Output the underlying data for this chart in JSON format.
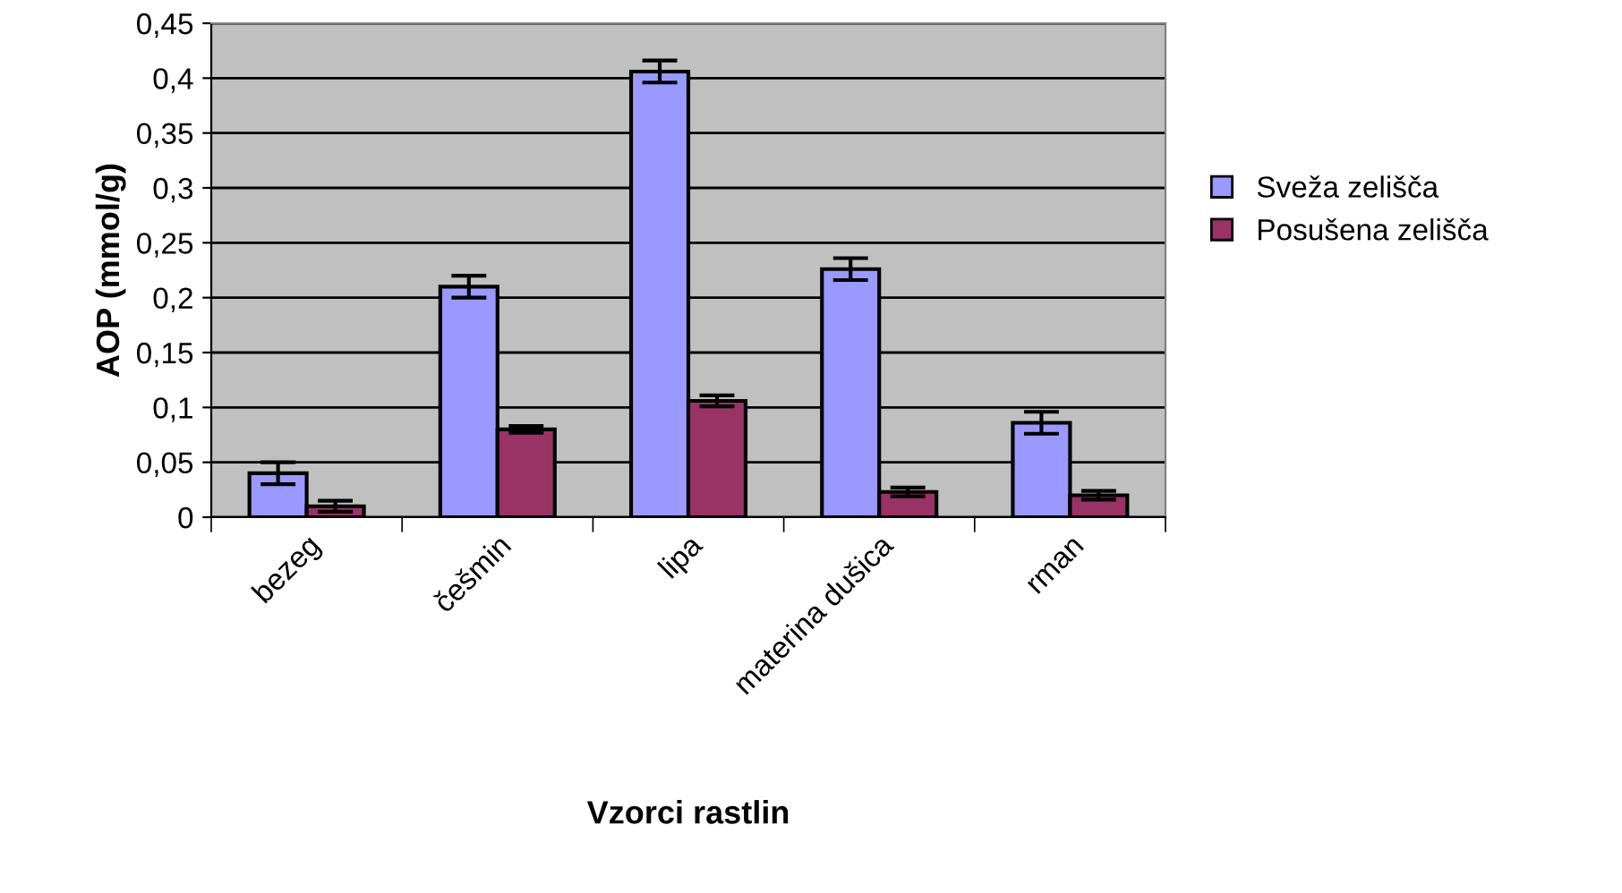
{
  "chart_data": {
    "type": "bar",
    "xlabel": "Vzorci rastlin",
    "ylabel": "AOP (mmol/g)",
    "categories": [
      "bezeg",
      "češmin",
      "lipa",
      "materina dušica",
      "rman"
    ],
    "series": [
      {
        "name": "Sveža zelišča",
        "color": "#9999ff",
        "values": [
          0.04,
          0.21,
          0.406,
          0.226,
          0.086
        ],
        "errors": [
          0.01,
          0.01,
          0.01,
          0.01,
          0.01
        ]
      },
      {
        "name": "Posušena zelišča",
        "color": "#993366",
        "values": [
          0.01,
          0.08,
          0.106,
          0.023,
          0.02
        ],
        "errors": [
          0.005,
          0.003,
          0.005,
          0.004,
          0.004
        ]
      }
    ],
    "ylim": [
      0,
      0.45
    ],
    "yticks": [
      0,
      {
        "value": 0.05,
        "label": "0,05"
      },
      {
        "value": 0.1,
        "label": "0,1"
      },
      {
        "value": 0.15,
        "label": "0,15"
      },
      {
        "value": 0.2,
        "label": "0,2"
      },
      {
        "value": 0.25,
        "label": "0,25"
      },
      {
        "value": 0.3,
        "label": "0,3"
      },
      {
        "value": 0.35,
        "label": "0,35"
      },
      {
        "value": 0.4,
        "label": "0,4"
      },
      {
        "value": 0.45,
        "label": "0,45"
      }
    ],
    "grid": "y",
    "legend": "right"
  }
}
